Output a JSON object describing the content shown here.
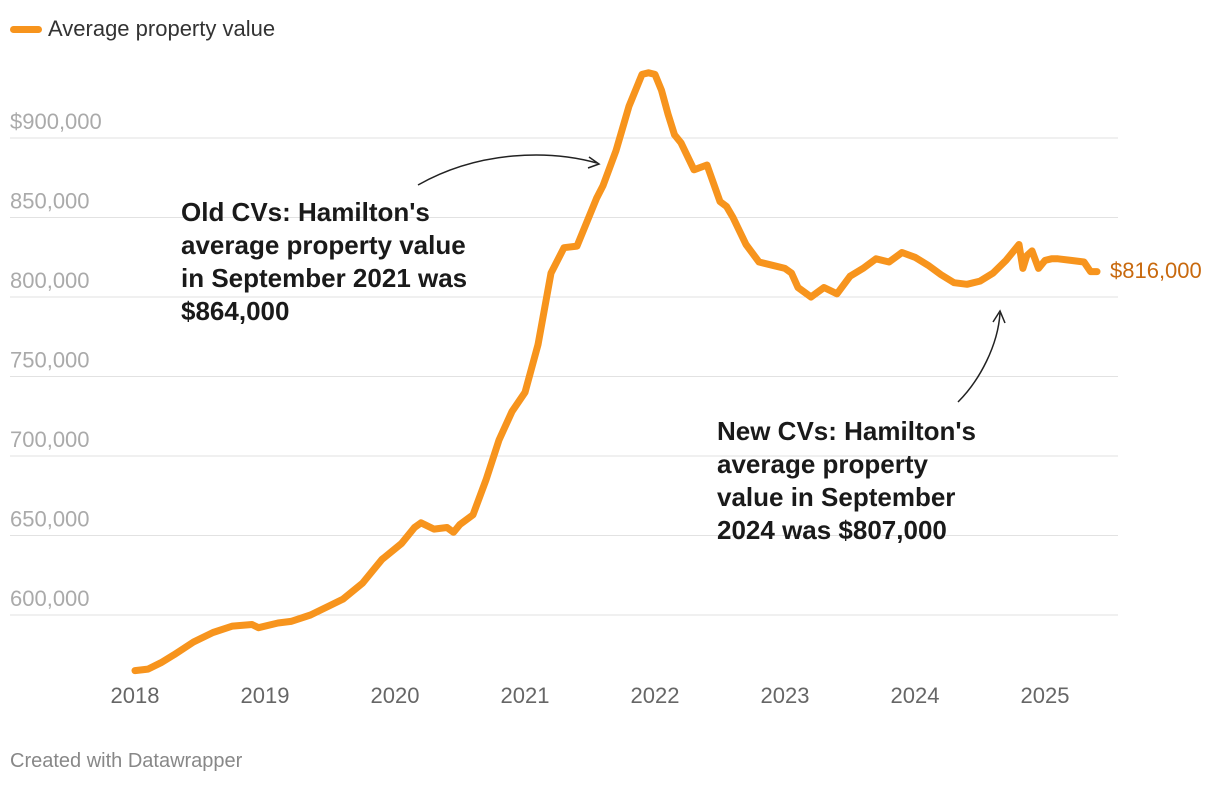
{
  "legend": {
    "label": "Average property value",
    "color": "#f7941d"
  },
  "footer": "Created with Datawrapper",
  "end_label": "$816,000",
  "end_label_color": "#c8690e",
  "annotations": {
    "old": "Old CVs: Hamilton's average property value in September 2021 was $864,000",
    "new": "New CVs: Hamilton's average property value in September 2024 was $807,000"
  },
  "chart_data": {
    "type": "line",
    "title": "",
    "xlabel": "",
    "ylabel": "",
    "xlim": [
      2018,
      2025.6
    ],
    "ylim": [
      560000,
      945000
    ],
    "x_ticks": [
      2018,
      2019,
      2020,
      2021,
      2022,
      2023,
      2024,
      2025
    ],
    "x_tick_labels": [
      "2018",
      "2019",
      "2020",
      "2021",
      "2022",
      "2023",
      "2024",
      "2025"
    ],
    "y_ticks": [
      600000,
      650000,
      700000,
      750000,
      800000,
      850000,
      900000
    ],
    "y_tick_labels": [
      "600,000",
      "650,000",
      "700,000",
      "750,000",
      "800,000",
      "850,000",
      "$900,000"
    ],
    "grid": true,
    "series": [
      {
        "name": "Average property value",
        "color": "#f7941d",
        "x": [
          2018.0,
          2018.1,
          2018.2,
          2018.3,
          2018.45,
          2018.6,
          2018.75,
          2018.9,
          2018.95,
          2019.1,
          2019.2,
          2019.35,
          2019.5,
          2019.6,
          2019.75,
          2019.9,
          2020.05,
          2020.15,
          2020.2,
          2020.3,
          2020.4,
          2020.45,
          2020.5,
          2020.6,
          2020.7,
          2020.8,
          2020.9,
          2021.0,
          2021.1,
          2021.2,
          2021.3,
          2021.4,
          2021.5,
          2021.55,
          2021.6,
          2021.7,
          2021.8,
          2021.9,
          2021.95,
          2022.0,
          2022.05,
          2022.1,
          2022.15,
          2022.2,
          2022.3,
          2022.4,
          2022.5,
          2022.55,
          2022.6,
          2022.7,
          2022.8,
          2022.9,
          2023.0,
          2023.05,
          2023.1,
          2023.2,
          2023.3,
          2023.4,
          2023.5,
          2023.6,
          2023.7,
          2023.8,
          2023.9,
          2024.0,
          2024.1,
          2024.2,
          2024.3,
          2024.4,
          2024.5,
          2024.6,
          2024.7,
          2024.8,
          2024.83,
          2024.86,
          2024.9,
          2024.95,
          2025.0,
          2025.05,
          2025.1,
          2025.2,
          2025.3,
          2025.35,
          2025.4
        ],
        "values": [
          565000,
          566000,
          570000,
          575000,
          583000,
          589000,
          593000,
          594000,
          592000,
          595000,
          596000,
          600000,
          606000,
          610000,
          620000,
          635000,
          645000,
          655000,
          658000,
          654000,
          655000,
          652000,
          657000,
          663000,
          685000,
          710000,
          728000,
          740000,
          770000,
          815000,
          831000,
          832000,
          852000,
          862000,
          870000,
          892000,
          920000,
          940000,
          941000,
          940000,
          930000,
          915000,
          902000,
          897000,
          880000,
          883000,
          860000,
          857000,
          850000,
          833000,
          822000,
          820000,
          818000,
          815000,
          806000,
          800000,
          806000,
          802000,
          813000,
          818000,
          824000,
          822000,
          828000,
          825000,
          820000,
          814000,
          809000,
          808000,
          810000,
          815000,
          823000,
          833000,
          818000,
          826000,
          829000,
          818000,
          823000,
          824000,
          824000,
          823000,
          822000,
          816000,
          816000
        ]
      }
    ]
  }
}
